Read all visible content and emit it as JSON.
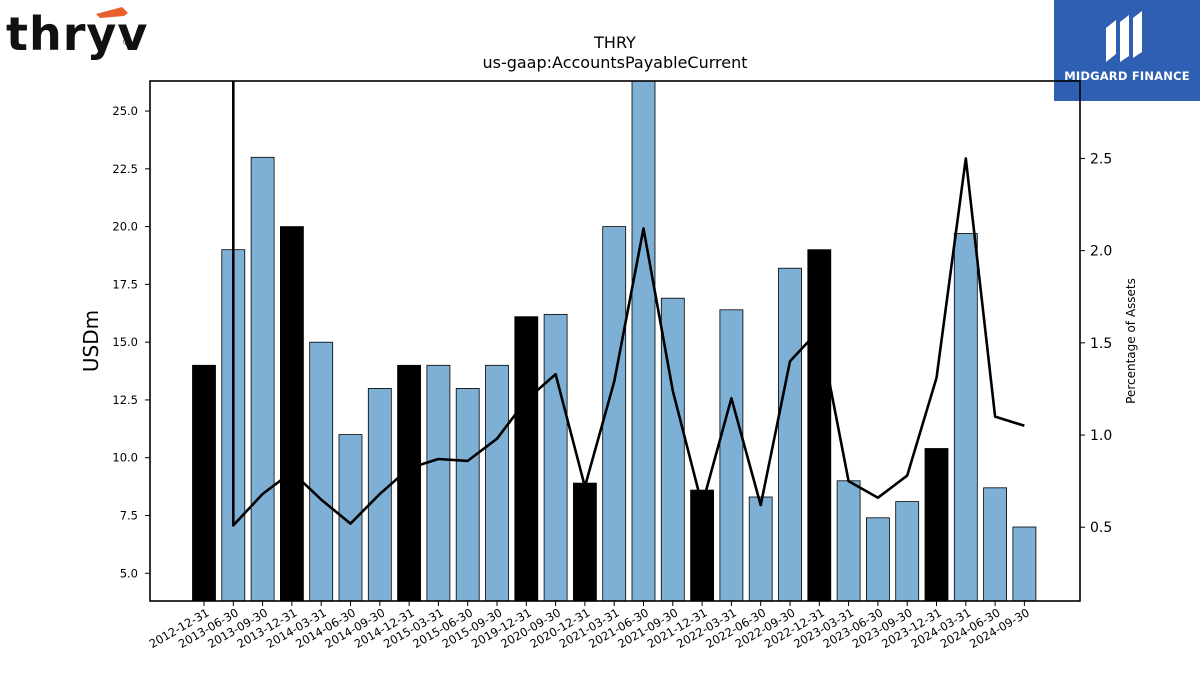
{
  "logos": {
    "left_text": "thryv",
    "left_reg": "®",
    "right_text": "MIDGARD FINANCE"
  },
  "colors": {
    "bar_regular": "#7eb0d5",
    "bar_year_end": "#000000",
    "line": "#000000",
    "logo_right_bg": "#2f5fb3",
    "logo_left_accent": "#e8612c"
  },
  "chart_data": {
    "type": "bar",
    "title": "THRY",
    "subtitle": "us-gaap:AccountsPayableCurrent",
    "ylabel": "USDm",
    "y2label": "Percentage of Assets",
    "ylim": [
      3.8,
      26.3
    ],
    "y2lim": [
      0.1,
      2.92
    ],
    "yticks": [
      "5.0",
      "7.5",
      "10.0",
      "12.5",
      "15.0",
      "17.5",
      "20.0",
      "22.5",
      "25.0"
    ],
    "y2ticks": [
      "0.5",
      "1.0",
      "1.5",
      "2.0",
      "2.5"
    ],
    "categories": [
      "2012-12-31",
      "2013-06-30",
      "2013-09-30",
      "2013-12-31",
      "2014-03-31",
      "2014-06-30",
      "2014-09-30",
      "2014-12-31",
      "2015-03-31",
      "2015-06-30",
      "2015-09-30",
      "2019-12-31",
      "2020-09-30",
      "2020-12-31",
      "2021-03-31",
      "2021-06-30",
      "2021-09-30",
      "2021-12-31",
      "2022-03-31",
      "2022-06-30",
      "2022-09-30",
      "2022-12-31",
      "2023-03-31",
      "2023-06-30",
      "2023-09-30",
      "2023-12-31",
      "2024-03-31",
      "2024-06-30",
      "2024-09-30"
    ],
    "values": [
      14.0,
      19.0,
      23.0,
      20.0,
      15.0,
      11.0,
      13.0,
      14.0,
      14.0,
      13.0,
      14.0,
      16.1,
      16.2,
      8.9,
      20.0,
      26.5,
      16.9,
      8.6,
      16.4,
      8.3,
      18.2,
      19.0,
      9.0,
      7.4,
      8.1,
      10.4,
      19.7,
      8.7,
      7.0
    ],
    "year_end": [
      true,
      false,
      false,
      true,
      false,
      false,
      false,
      true,
      false,
      false,
      false,
      true,
      false,
      true,
      false,
      false,
      false,
      true,
      false,
      false,
      false,
      true,
      false,
      false,
      false,
      true,
      false,
      false,
      false
    ],
    "pct_assets": [
      null,
      0.51,
      0.68,
      0.8,
      0.65,
      0.52,
      0.68,
      0.82,
      0.87,
      0.86,
      0.98,
      1.19,
      1.33,
      0.72,
      1.29,
      2.12,
      1.24,
      0.62,
      1.2,
      0.62,
      1.4,
      1.57,
      0.75,
      0.66,
      0.78,
      1.31,
      2.5,
      1.1,
      1.05
    ],
    "pct_assets_start_above_axis": true
  }
}
